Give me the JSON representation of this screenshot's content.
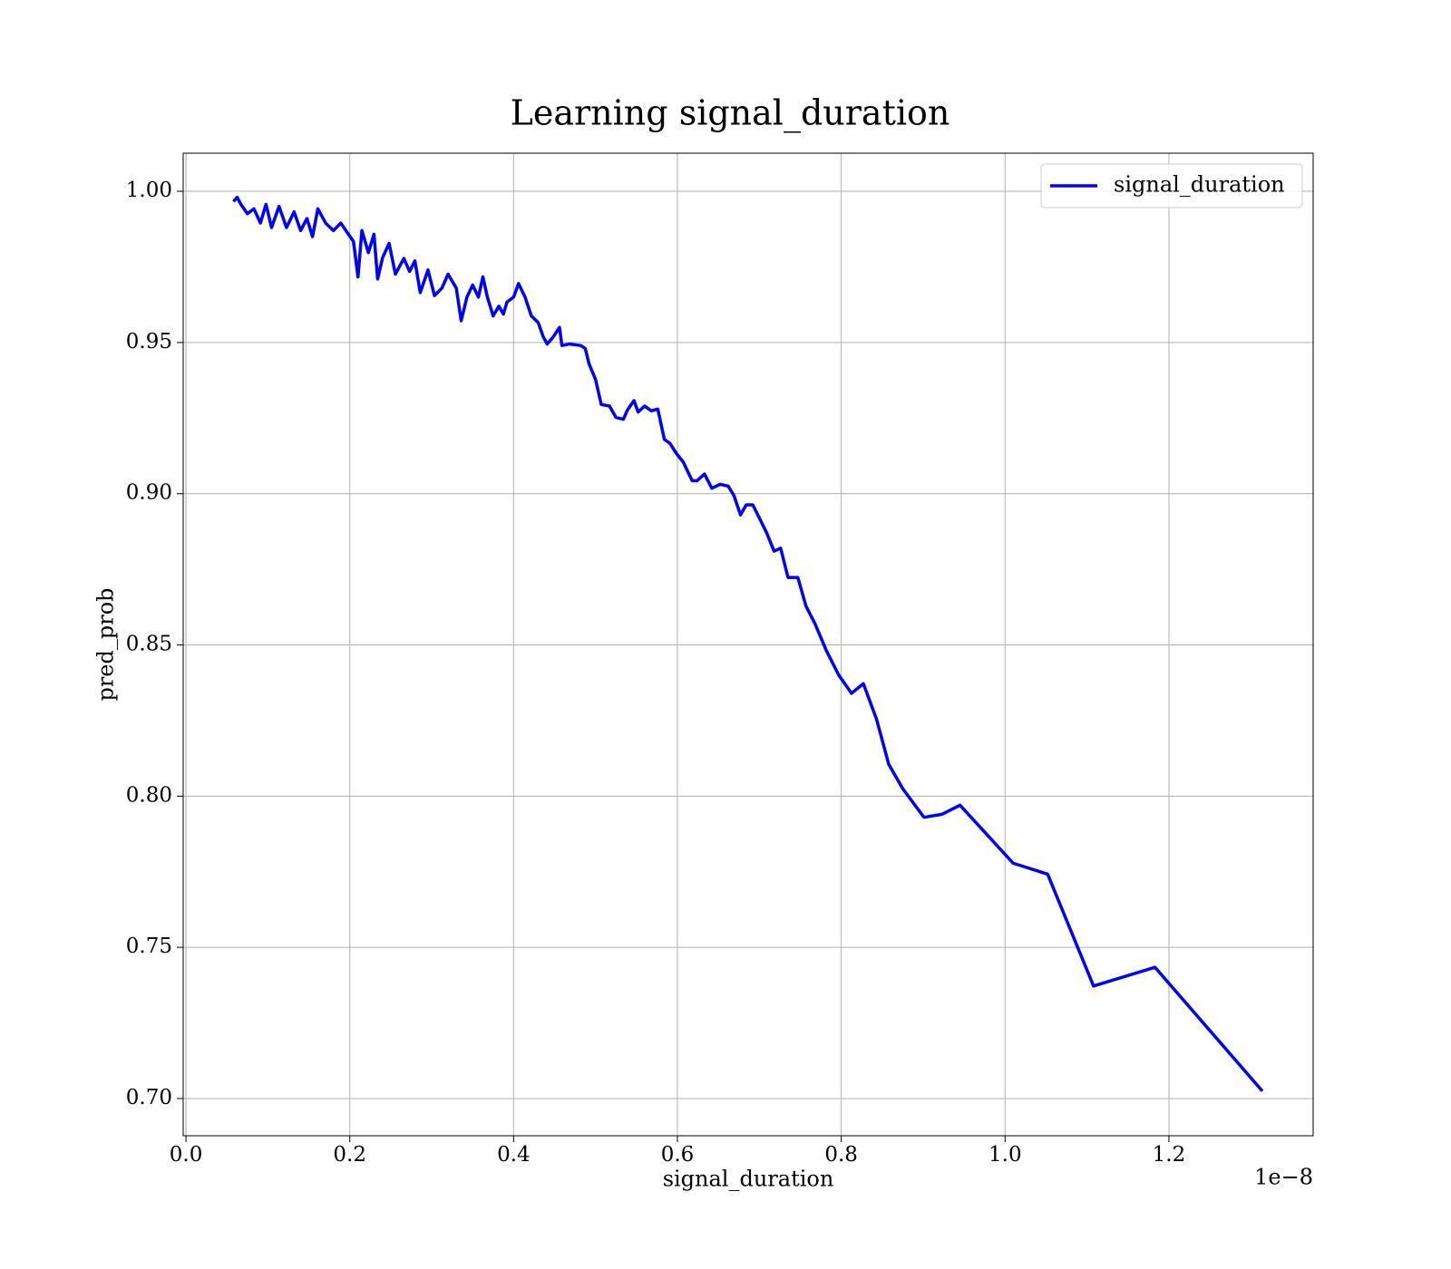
{
  "chart_data": {
    "type": "line",
    "title": "Learning signal_duration",
    "x_label": "signal_duration",
    "y_label": "pred_prob",
    "x_offset_label": "1e−8",
    "x": [
      0.058,
      0.0625,
      0.067,
      0.075,
      0.083,
      0.0909,
      0.0977,
      0.1045,
      0.1136,
      0.1227,
      0.132,
      0.14,
      0.1477,
      0.1545,
      0.161,
      0.1705,
      0.18,
      0.189,
      0.1966,
      0.2045,
      0.21,
      0.2148,
      0.2227,
      0.2295,
      0.234,
      0.24,
      0.248,
      0.2557,
      0.266,
      0.273,
      0.2795,
      0.286,
      0.2955,
      0.3034,
      0.3125,
      0.32,
      0.33,
      0.336,
      0.343,
      0.35,
      0.357,
      0.3625,
      0.368,
      0.375,
      0.382,
      0.3875,
      0.392,
      0.4,
      0.406,
      0.414,
      0.4216,
      0.43,
      0.436,
      0.441,
      0.448,
      0.456,
      0.459,
      0.468,
      0.482,
      0.4875,
      0.492,
      0.5,
      0.507,
      0.517,
      0.525,
      0.534,
      0.539,
      0.547,
      0.552,
      0.56,
      0.568,
      0.576,
      0.584,
      0.591,
      0.599,
      0.607,
      0.618,
      0.624,
      0.633,
      0.642,
      0.652,
      0.662,
      0.669,
      0.677,
      0.684,
      0.692,
      0.7,
      0.709,
      0.718,
      0.726,
      0.735,
      0.747,
      0.757,
      0.768,
      0.782,
      0.797,
      0.8125,
      0.827,
      0.843,
      0.858,
      0.875,
      0.901,
      0.923,
      0.945,
      1.01,
      1.052,
      1.108,
      1.183,
      1.314
    ],
    "series": [
      {
        "name": "signal_duration",
        "color": "#0000ff",
        "values": [
          0.9966,
          0.998,
          0.9957,
          0.9926,
          0.9942,
          0.9895,
          0.9957,
          0.988,
          0.995,
          0.988,
          0.9932,
          0.987,
          0.991,
          0.985,
          0.9942,
          0.9895,
          0.987,
          0.9895,
          0.9865,
          0.9834,
          0.9717,
          0.987,
          0.9797,
          0.9858,
          0.971,
          0.978,
          0.9828,
          0.9726,
          0.9778,
          0.9735,
          0.977,
          0.9665,
          0.974,
          0.9655,
          0.968,
          0.9726,
          0.968,
          0.9572,
          0.965,
          0.969,
          0.965,
          0.9717,
          0.965,
          0.9588,
          0.962,
          0.9594,
          0.9634,
          0.965,
          0.9695,
          0.965,
          0.9588,
          0.9566,
          0.952,
          0.9495,
          0.9517,
          0.955,
          0.949,
          0.9495,
          0.949,
          0.948,
          0.943,
          0.9378,
          0.9295,
          0.929,
          0.9252,
          0.9246,
          0.9277,
          0.9308,
          0.927,
          0.929,
          0.9274,
          0.928,
          0.918,
          0.9166,
          0.9132,
          0.9105,
          0.9043,
          0.9043,
          0.9065,
          0.9018,
          0.9031,
          0.9025,
          0.8994,
          0.893,
          0.8963,
          0.8963,
          0.892,
          0.887,
          0.881,
          0.882,
          0.8723,
          0.8723,
          0.8628,
          0.857,
          0.848,
          0.84,
          0.834,
          0.8372,
          0.8255,
          0.8105,
          0.8025,
          0.793,
          0.794,
          0.797,
          0.7778,
          0.7742,
          0.7372,
          0.7434,
          0.7025
        ]
      }
    ],
    "xlim": [
      -0.0034,
      1.3761
    ],
    "xticks": [
      {
        "value": 0,
        "label": "0.0"
      },
      0.2,
      0.4,
      0.6,
      0.8,
      {
        "value": 1,
        "label": "1.0"
      },
      1.2
    ],
    "ylim": [
      0.6877,
      1.0126
    ],
    "yticks": [
      {
        "value": 0.7,
        "label": "0.70"
      },
      0.75,
      {
        "value": 0.8,
        "label": "0.80"
      },
      0.85,
      {
        "value": 0.9,
        "label": "0.90"
      },
      0.95,
      {
        "value": 1,
        "label": "1.00"
      }
    ],
    "grid": true,
    "legend": "upper right"
  }
}
